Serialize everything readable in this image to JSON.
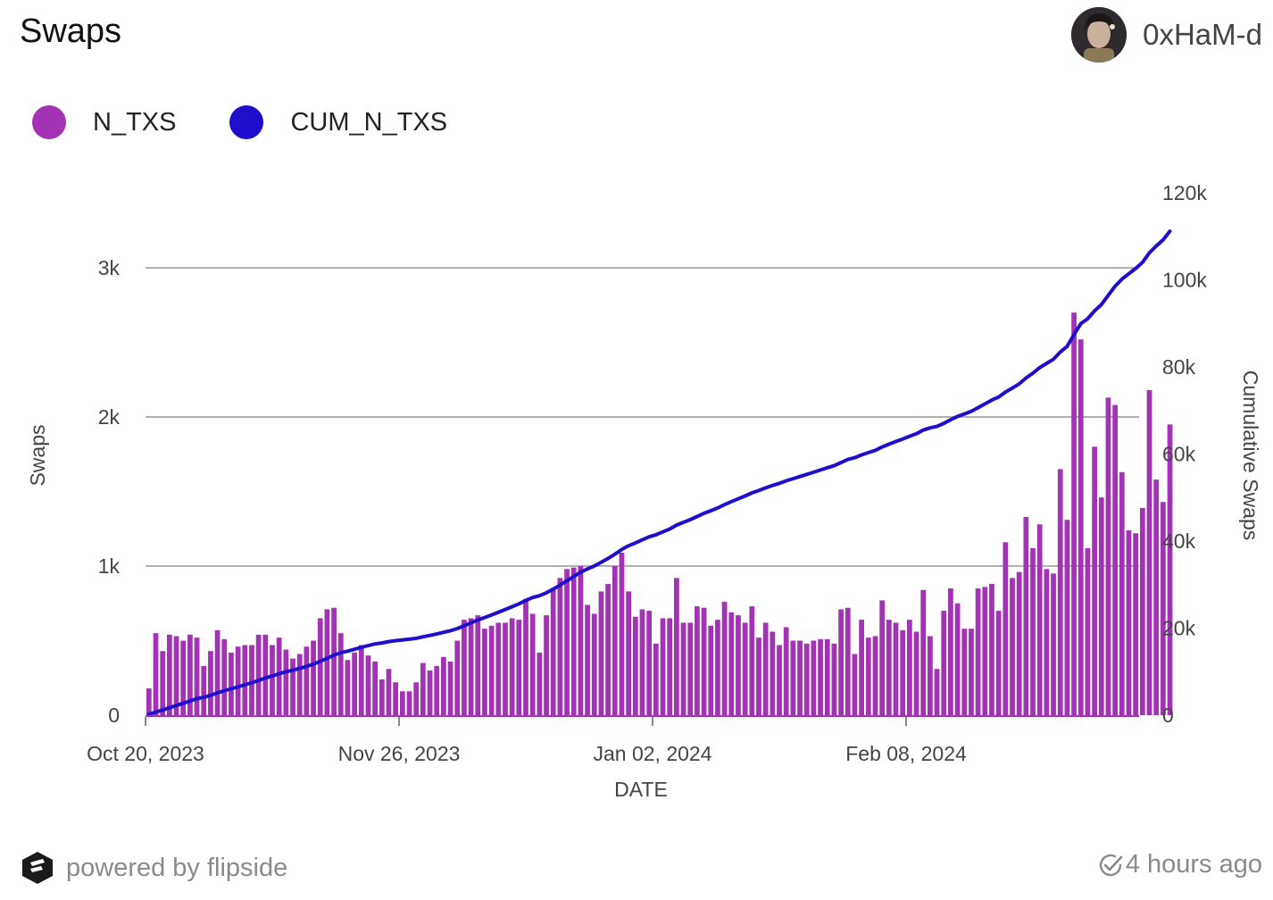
{
  "header": {
    "title": "Swaps",
    "username": "0xHaM-d"
  },
  "footer": {
    "powered_by": "powered by flipside",
    "updated": "4 hours ago"
  },
  "colors": {
    "n_txs": "#a233b5",
    "cum_n_txs": "#1f0ecc",
    "grid": "#b0b0b0",
    "axis_text": "#444444"
  },
  "icons": {
    "logo": "flipside-logo-icon",
    "check": "check-clock-icon"
  },
  "chart_data": {
    "type": "bar",
    "xlabel": "DATE",
    "ylabel": "Swaps",
    "y2label": "Cumulative Swaps",
    "ylim": [
      0,
      3000
    ],
    "y2lim": [
      0,
      120000
    ],
    "yticks": [
      "0",
      "1k",
      "2k",
      "3k"
    ],
    "y2ticks": [
      "0",
      "20k",
      "40k",
      "60k",
      "80k",
      "100k",
      "120k"
    ],
    "x_start": "2023-10-20",
    "x_end": "2024-03-12",
    "xticks": [
      "Oct 20, 2023",
      "Nov 26, 2023",
      "Jan 02, 2024",
      "Feb 08, 2024"
    ],
    "series": [
      {
        "name": "N_TXS",
        "type": "bar",
        "values": [
          180,
          550,
          430,
          540,
          530,
          500,
          540,
          520,
          330,
          430,
          570,
          510,
          420,
          460,
          470,
          470,
          540,
          540,
          470,
          520,
          440,
          380,
          410,
          460,
          500,
          650,
          710,
          720,
          550,
          370,
          420,
          470,
          400,
          360,
          240,
          310,
          220,
          160,
          160,
          220,
          350,
          300,
          330,
          390,
          360,
          500,
          640,
          650,
          670,
          580,
          600,
          620,
          620,
          650,
          640,
          780,
          680,
          420,
          670,
          850,
          920,
          980,
          990,
          1000,
          740,
          680,
          830,
          880,
          1000,
          1090,
          830,
          660,
          710,
          700,
          480,
          650,
          650,
          920,
          620,
          620,
          730,
          720,
          600,
          640,
          760,
          690,
          670,
          620,
          730,
          520,
          620,
          560,
          470,
          590,
          500,
          500,
          480,
          500,
          510,
          510,
          480,
          710,
          720,
          410,
          640,
          520,
          530,
          770,
          640,
          620,
          570,
          640,
          560,
          840,
          530,
          310,
          700,
          850,
          750,
          580,
          580,
          850,
          860,
          880,
          700,
          1160,
          920,
          960,
          1330,
          1120,
          1280,
          980,
          950,
          1650,
          1310,
          2700,
          2520,
          1120,
          1800,
          1460,
          2130,
          2080,
          1630,
          1240,
          1220,
          1390,
          2180,
          1580,
          1430,
          1950
        ]
      },
      {
        "name": "CUM_N_TXS",
        "type": "line",
        "values": [
          180,
          730,
          1160,
          1700,
          2230,
          2730,
          3270,
          3790,
          4120,
          4550,
          5120,
          5630,
          6050,
          6510,
          6980,
          7450,
          7990,
          8530,
          9000,
          9520,
          9960,
          10340,
          10750,
          11210,
          11710,
          12360,
          13070,
          13790,
          14340,
          14710,
          15130,
          15600,
          16000,
          16360,
          16600,
          16910,
          17130,
          17290,
          17450,
          17670,
          18020,
          18320,
          18650,
          19040,
          19400,
          19900,
          20540,
          21190,
          21860,
          22440,
          23040,
          23660,
          24280,
          24930,
          25570,
          26350,
          27030,
          27450,
          28120,
          28970,
          29890,
          30870,
          31860,
          32860,
          33600,
          34280,
          35110,
          35990,
          36990,
          38080,
          38910,
          39570,
          40280,
          40980,
          41460,
          42110,
          42760,
          43680,
          44300,
          44920,
          45650,
          46370,
          46970,
          47610,
          48370,
          49060,
          49730,
          50350,
          51080,
          51600,
          52220,
          52780,
          53250,
          53840,
          54340,
          54840,
          55320,
          55820,
          56330,
          56840,
          57320,
          58030,
          58750,
          59160,
          59800,
          60320,
          60850,
          61620,
          62260,
          62880,
          63450,
          64090,
          64650,
          65490,
          66020,
          66330,
          67030,
          67880,
          68630,
          69210,
          69790,
          70640,
          71500,
          72380,
          73080,
          74240,
          75160,
          76120,
          77450,
          78570,
          79850,
          80830,
          81780,
          83430,
          84740,
          87440,
          89960,
          91080,
          92880,
          94340,
          96470,
          98550,
          100180,
          101420,
          102640,
          104030,
          106210,
          107790,
          109220,
          111170
        ]
      }
    ]
  }
}
